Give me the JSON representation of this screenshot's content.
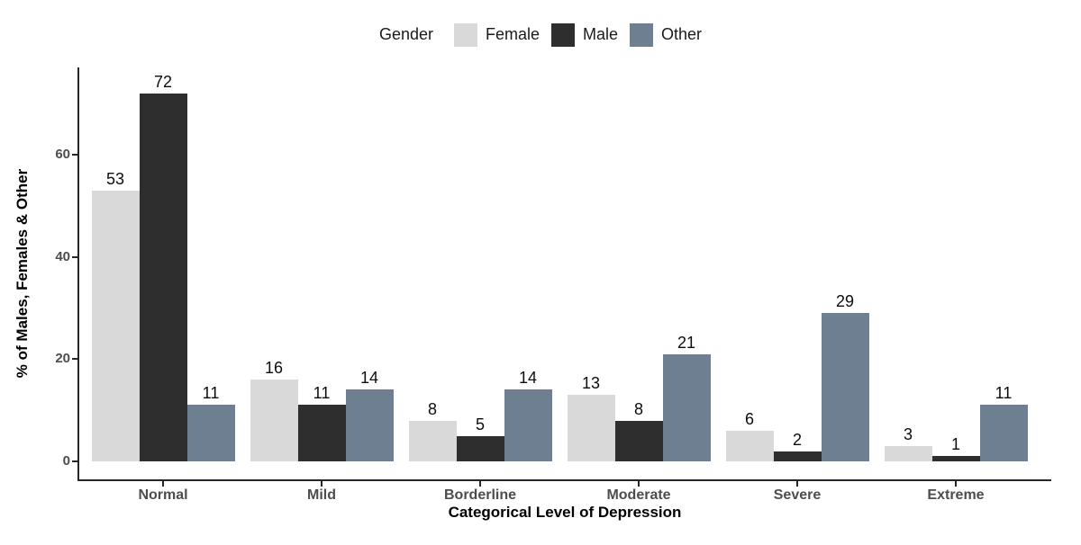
{
  "legend": {
    "title": "Gender",
    "position": "top"
  },
  "chart_data": {
    "type": "bar",
    "title": "",
    "categories": [
      "Normal",
      "Mild",
      "Borderline",
      "Moderate",
      "Severe",
      "Extreme"
    ],
    "series": [
      {
        "name": "Female",
        "color": "#d9d9d9",
        "values": [
          53,
          16,
          8,
          13,
          6,
          3
        ]
      },
      {
        "name": "Male",
        "color": "#2e2e2e",
        "values": [
          72,
          11,
          5,
          8,
          2,
          1
        ]
      },
      {
        "name": "Other",
        "color": "#6d7f91",
        "values": [
          11,
          14,
          14,
          21,
          29,
          11
        ]
      }
    ],
    "xlabel": "Categorical Level of Depression",
    "ylabel": "% of Males, Females & Other",
    "yticks": [
      0,
      20,
      40,
      60
    ],
    "ylim": [
      0,
      77
    ],
    "grid": false,
    "legend_position": "top",
    "bar_value_labels": true
  },
  "colors": {
    "background": "#ffffff",
    "axis_line": "#262626",
    "tick_label": "#4d4d4d",
    "axis_title": "#000000",
    "value_label": "#0d0d0d",
    "legend_text": "#1a1a1a"
  }
}
